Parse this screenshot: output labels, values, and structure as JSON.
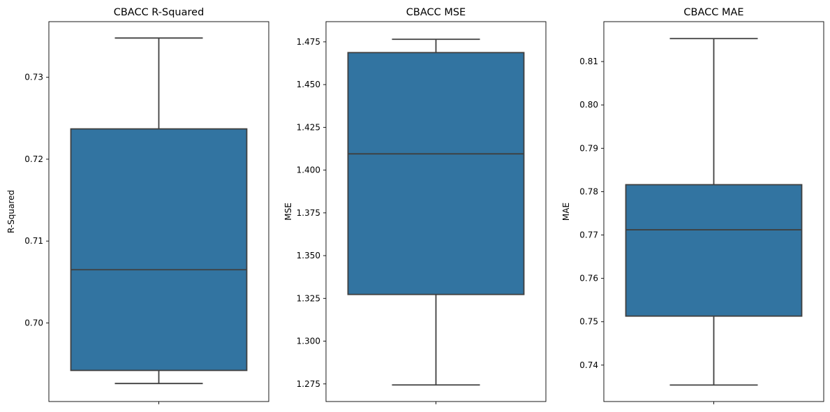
{
  "chart_data": [
    {
      "type": "box",
      "title": "CBACC R-Squared",
      "xlabel": "",
      "ylabel": "R-Squared",
      "ylim": [
        0.6904,
        0.7368
      ],
      "yticks": [
        0.7,
        0.71,
        0.72,
        0.73
      ],
      "ytick_labels": [
        "0.70",
        "0.71",
        "0.72",
        "0.73"
      ],
      "box": {
        "whisker_low": 0.6926,
        "q1": 0.6942,
        "median": 0.7065,
        "q3": 0.7237,
        "whisker_high": 0.7348
      },
      "color": "#3274a1",
      "grid": false
    },
    {
      "type": "box",
      "title": "CBACC MSE",
      "xlabel": "",
      "ylabel": "MSE",
      "ylim": [
        1.2647,
        1.4868
      ],
      "yticks": [
        1.275,
        1.3,
        1.325,
        1.35,
        1.375,
        1.4,
        1.425,
        1.45,
        1.475
      ],
      "ytick_labels": [
        "1.275",
        "1.300",
        "1.325",
        "1.350",
        "1.375",
        "1.400",
        "1.425",
        "1.450",
        "1.475"
      ],
      "box": {
        "whisker_low": 1.2744,
        "q1": 1.3273,
        "median": 1.4095,
        "q3": 1.4687,
        "whisker_high": 1.4765
      },
      "color": "#3274a1",
      "grid": false
    },
    {
      "type": "box",
      "title": "CBACC MAE",
      "xlabel": "",
      "ylabel": "MAE",
      "ylim": [
        0.7316,
        0.8192
      ],
      "yticks": [
        0.74,
        0.75,
        0.76,
        0.77,
        0.78,
        0.79,
        0.8,
        0.81
      ],
      "ytick_labels": [
        "0.74",
        "0.75",
        "0.76",
        "0.77",
        "0.78",
        "0.79",
        "0.80",
        "0.81"
      ],
      "box": {
        "whisker_low": 0.7354,
        "q1": 0.7513,
        "median": 0.7712,
        "q3": 0.7816,
        "whisker_high": 0.8153
      },
      "color": "#3274a1",
      "grid": false
    }
  ]
}
